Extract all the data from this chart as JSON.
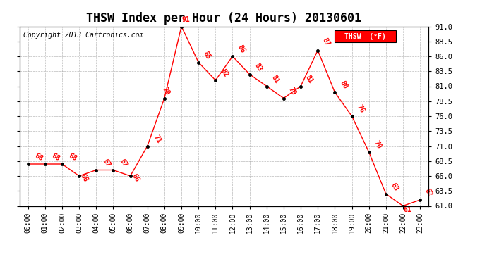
{
  "title": "THSW Index per Hour (24 Hours) 20130601",
  "copyright": "Copyright 2013 Cartronics.com",
  "legend_label": "THSW  (°F)",
  "hours": [
    0,
    1,
    2,
    3,
    4,
    5,
    6,
    7,
    8,
    9,
    10,
    11,
    12,
    13,
    14,
    15,
    16,
    17,
    18,
    19,
    20,
    21,
    22,
    23
  ],
  "values": [
    68,
    68,
    68,
    66,
    67,
    67,
    66,
    71,
    79,
    91,
    85,
    82,
    86,
    83,
    81,
    79,
    81,
    87,
    80,
    76,
    70,
    63,
    61,
    62
  ],
  "ylim": [
    61.0,
    91.0
  ],
  "yticks": [
    61.0,
    63.5,
    66.0,
    68.5,
    71.0,
    73.5,
    76.0,
    78.5,
    81.0,
    83.5,
    86.0,
    88.5,
    91.0
  ],
  "line_color": "red",
  "label_color": "red",
  "marker_color": "black",
  "background_color": "white",
  "grid_color": "#aaaaaa",
  "title_fontsize": 12,
  "legend_bg": "red",
  "legend_text_color": "white",
  "label_offsets": {
    "0": [
      0.3,
      0.3,
      -30
    ],
    "1": [
      0.3,
      0.3,
      -30
    ],
    "2": [
      0.3,
      0.3,
      -30
    ],
    "3": [
      0.0,
      -1.2,
      -60
    ],
    "4": [
      0.3,
      0.3,
      -60
    ],
    "5": [
      0.3,
      0.3,
      -60
    ],
    "6": [
      0.0,
      -1.2,
      -60
    ],
    "7": [
      0.3,
      0.3,
      -60
    ],
    "8": [
      -0.2,
      0.3,
      -60
    ],
    "9": [
      0.0,
      0.5,
      0
    ],
    "10": [
      0.2,
      0.3,
      -60
    ],
    "11": [
      0.2,
      0.3,
      -60
    ],
    "12": [
      0.2,
      0.3,
      -60
    ],
    "13": [
      0.2,
      0.3,
      -60
    ],
    "14": [
      0.2,
      0.3,
      -60
    ],
    "15": [
      0.2,
      0.3,
      -60
    ],
    "16": [
      0.2,
      0.3,
      -60
    ],
    "17": [
      0.2,
      0.5,
      -60
    ],
    "18": [
      0.2,
      0.3,
      -60
    ],
    "19": [
      0.2,
      0.3,
      -60
    ],
    "20": [
      0.2,
      0.3,
      -60
    ],
    "21": [
      0.2,
      0.3,
      -60
    ],
    "22": [
      0.0,
      -1.2,
      0
    ],
    "23": [
      0.2,
      0.3,
      -60
    ]
  }
}
